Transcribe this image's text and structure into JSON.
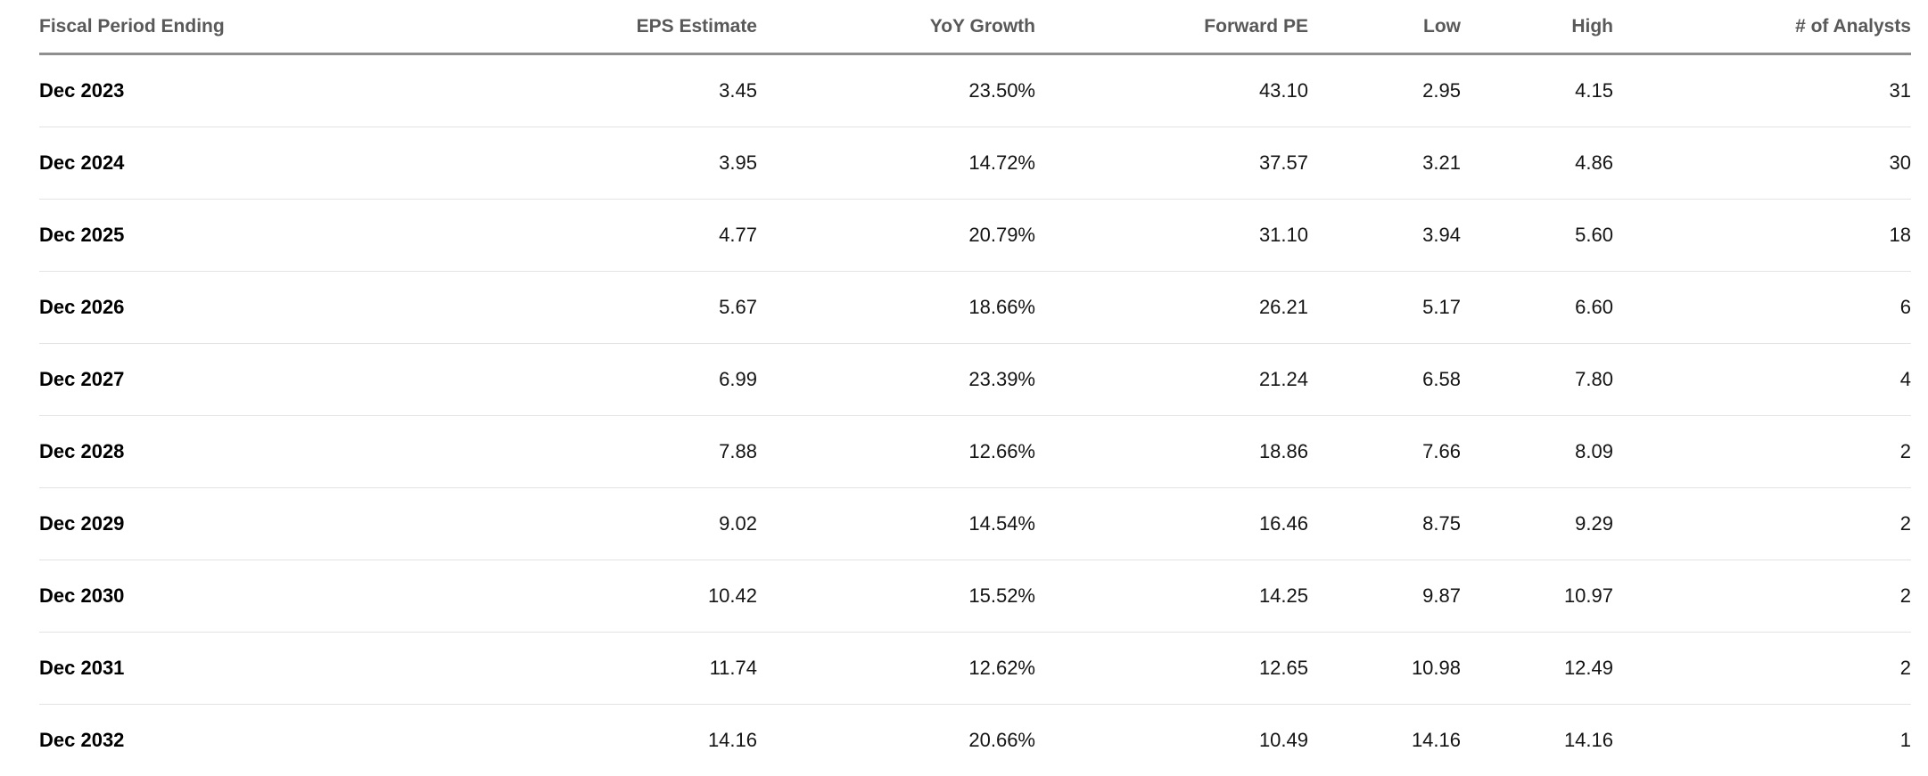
{
  "table": {
    "columns": [
      {
        "key": "period",
        "label": "Fiscal Period Ending",
        "align": "left"
      },
      {
        "key": "eps_estimate",
        "label": "EPS Estimate",
        "align": "right"
      },
      {
        "key": "yoy_growth",
        "label": "YoY Growth",
        "align": "right"
      },
      {
        "key": "forward_pe",
        "label": "Forward PE",
        "align": "right"
      },
      {
        "key": "low",
        "label": "Low",
        "align": "right"
      },
      {
        "key": "high",
        "label": "High",
        "align": "right"
      },
      {
        "key": "analysts",
        "label": "# of Analysts",
        "align": "right"
      }
    ],
    "rows": [
      {
        "period": "Dec 2023",
        "eps_estimate": "3.45",
        "yoy_growth": "23.50%",
        "forward_pe": "43.10",
        "low": "2.95",
        "high": "4.15",
        "analysts": "31"
      },
      {
        "period": "Dec 2024",
        "eps_estimate": "3.95",
        "yoy_growth": "14.72%",
        "forward_pe": "37.57",
        "low": "3.21",
        "high": "4.86",
        "analysts": "30"
      },
      {
        "period": "Dec 2025",
        "eps_estimate": "4.77",
        "yoy_growth": "20.79%",
        "forward_pe": "31.10",
        "low": "3.94",
        "high": "5.60",
        "analysts": "18"
      },
      {
        "period": "Dec 2026",
        "eps_estimate": "5.67",
        "yoy_growth": "18.66%",
        "forward_pe": "26.21",
        "low": "5.17",
        "high": "6.60",
        "analysts": "6"
      },
      {
        "period": "Dec 2027",
        "eps_estimate": "6.99",
        "yoy_growth": "23.39%",
        "forward_pe": "21.24",
        "low": "6.58",
        "high": "7.80",
        "analysts": "4"
      },
      {
        "period": "Dec 2028",
        "eps_estimate": "7.88",
        "yoy_growth": "12.66%",
        "forward_pe": "18.86",
        "low": "7.66",
        "high": "8.09",
        "analysts": "2"
      },
      {
        "period": "Dec 2029",
        "eps_estimate": "9.02",
        "yoy_growth": "14.54%",
        "forward_pe": "16.46",
        "low": "8.75",
        "high": "9.29",
        "analysts": "2"
      },
      {
        "period": "Dec 2030",
        "eps_estimate": "10.42",
        "yoy_growth": "15.52%",
        "forward_pe": "14.25",
        "low": "9.87",
        "high": "10.97",
        "analysts": "2"
      },
      {
        "period": "Dec 2031",
        "eps_estimate": "11.74",
        "yoy_growth": "12.62%",
        "forward_pe": "12.65",
        "low": "10.98",
        "high": "12.49",
        "analysts": "2"
      },
      {
        "period": "Dec 2032",
        "eps_estimate": "14.16",
        "yoy_growth": "20.66%",
        "forward_pe": "10.49",
        "low": "14.16",
        "high": "14.16",
        "analysts": "1"
      }
    ]
  },
  "colors": {
    "background": "#ffffff",
    "header_text": "#595959",
    "header_border": "#8f8f8f",
    "row_border": "#e3e3e3",
    "cell_text": "#141414",
    "period_text": "#000000"
  },
  "chart_data": {
    "type": "table",
    "columns": [
      "Fiscal Period Ending",
      "EPS Estimate",
      "YoY Growth",
      "Forward PE",
      "Low",
      "High",
      "# of Analysts"
    ],
    "rows": [
      [
        "Dec 2023",
        "3.45",
        "23.50%",
        "43.10",
        "2.95",
        "4.15",
        "31"
      ],
      [
        "Dec 2024",
        "3.95",
        "14.72%",
        "37.57",
        "3.21",
        "4.86",
        "30"
      ],
      [
        "Dec 2025",
        "4.77",
        "20.79%",
        "31.10",
        "3.94",
        "5.60",
        "18"
      ],
      [
        "Dec 2026",
        "5.67",
        "18.66%",
        "26.21",
        "5.17",
        "6.60",
        "6"
      ],
      [
        "Dec 2027",
        "6.99",
        "23.39%",
        "21.24",
        "6.58",
        "7.80",
        "4"
      ],
      [
        "Dec 2028",
        "7.88",
        "12.66%",
        "18.86",
        "7.66",
        "8.09",
        "2"
      ],
      [
        "Dec 2029",
        "9.02",
        "14.54%",
        "16.46",
        "8.75",
        "9.29",
        "2"
      ],
      [
        "Dec 2030",
        "10.42",
        "15.52%",
        "14.25",
        "9.87",
        "10.97",
        "2"
      ],
      [
        "Dec 2031",
        "11.74",
        "12.62%",
        "12.65",
        "10.98",
        "12.49",
        "2"
      ],
      [
        "Dec 2032",
        "14.16",
        "20.66%",
        "10.49",
        "14.16",
        "14.16",
        "1"
      ]
    ]
  }
}
